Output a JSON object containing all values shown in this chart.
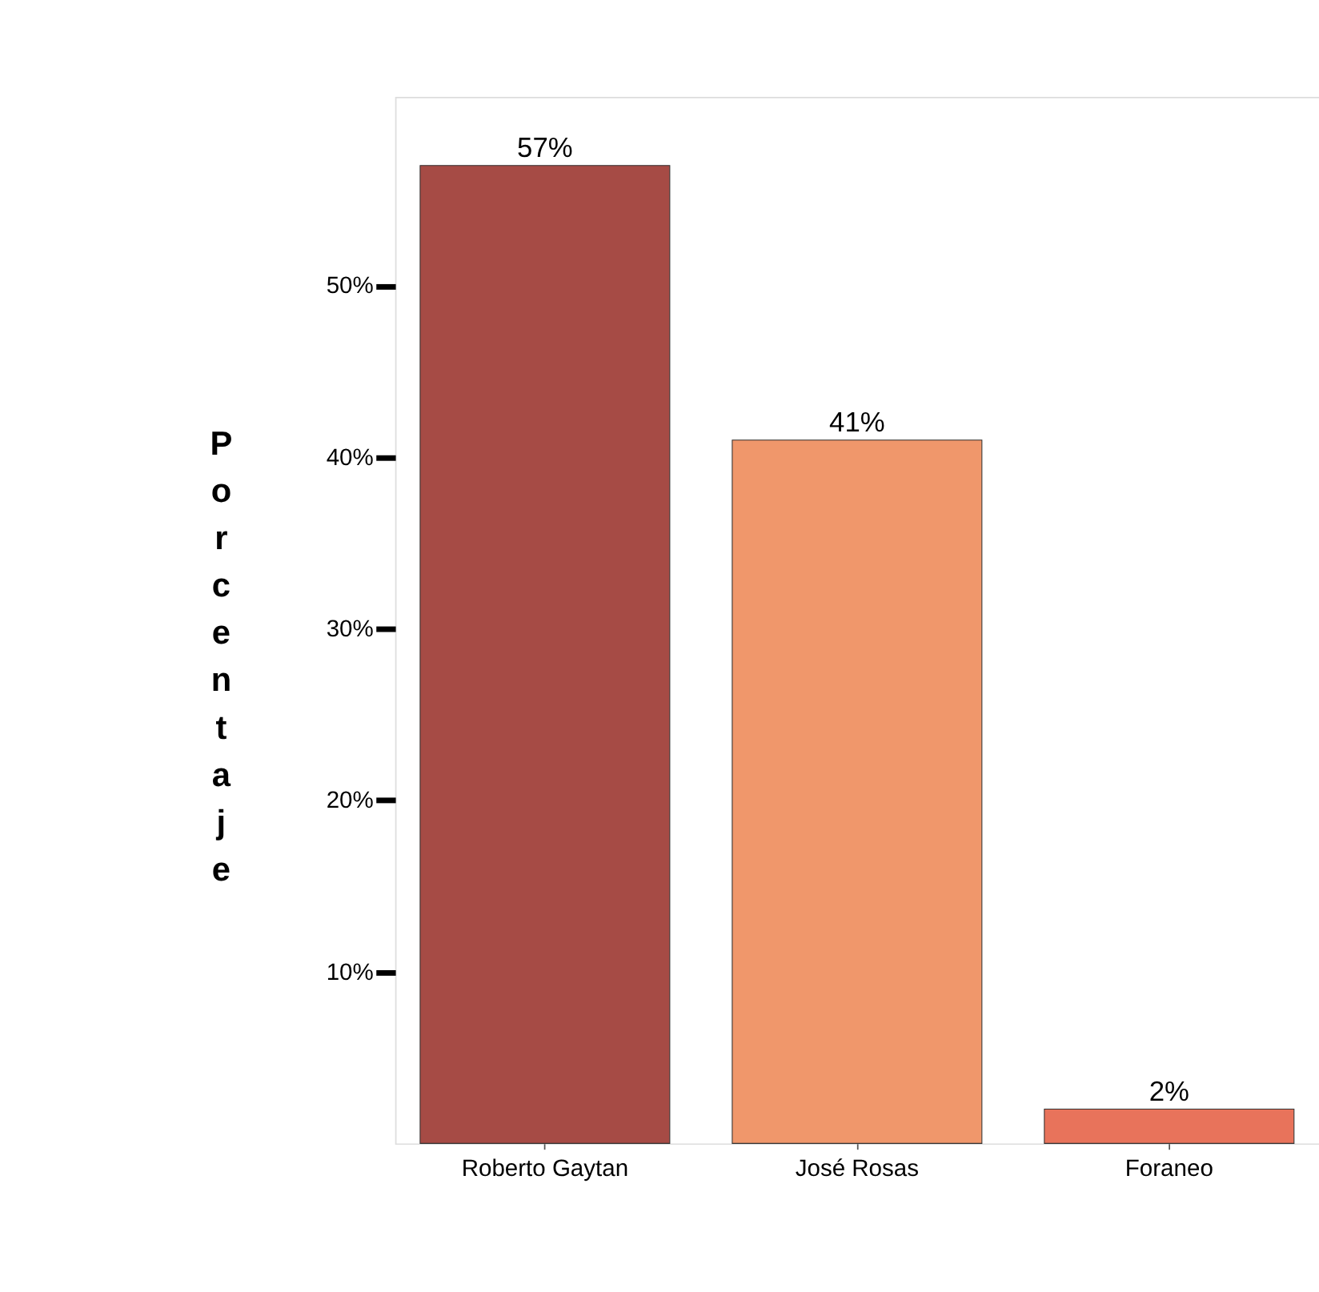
{
  "chart_data": {
    "type": "bar",
    "ylabel": "Porcentaje",
    "categories": [
      "Roberto Gaytan",
      "José Rosas",
      "Foraneo"
    ],
    "values": [
      57,
      41,
      2
    ],
    "colors": [
      "#a64b45",
      "#f0976b",
      "#e8735b"
    ],
    "value_labels": [
      "57%",
      "41%",
      "2%"
    ],
    "ylim": [
      0,
      61
    ],
    "yticks": [
      {
        "value": 10,
        "label": "10%"
      },
      {
        "value": 20,
        "label": "20%"
      },
      {
        "value": 30,
        "label": "30%"
      },
      {
        "value": 40,
        "label": "40%"
      },
      {
        "value": 50,
        "label": "50%"
      }
    ],
    "grid": false
  }
}
